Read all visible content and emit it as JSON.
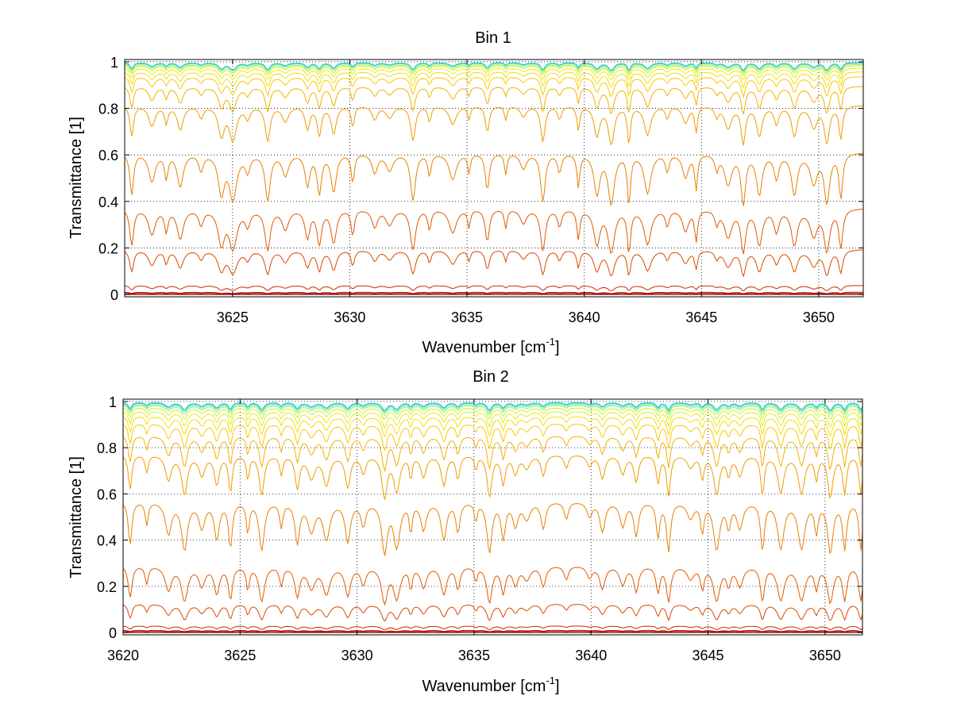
{
  "chart_data": [
    {
      "type": "line",
      "title": "Bin 1",
      "xlabel": "Wavenumber [cm",
      "xlabel_sup": "-1",
      "xlabel_suffix": "]",
      "ylabel": "Transmittance [1]",
      "xlim": [
        3620.4,
        3651.9
      ],
      "ylim": [
        -0.01,
        1.01
      ],
      "xticks": [
        3625,
        3630,
        3635,
        3640,
        3645,
        3650
      ],
      "xtick_labels": [
        "3625",
        "3630",
        "3635",
        "3640",
        "3645",
        "3650"
      ],
      "yticks": [
        0,
        0.2,
        0.4,
        0.6,
        0.8,
        1
      ],
      "ytick_labels": [
        "0",
        "0.2",
        "0.4",
        "0.6",
        "0.8",
        "1"
      ],
      "grid": true,
      "legend": "none",
      "series_baselines": [
        0.0,
        0.005,
        0.01,
        0.04,
        0.2,
        0.38,
        0.62,
        0.82,
        0.9,
        0.94,
        0.96,
        0.975,
        0.985,
        0.99,
        0.995,
        0.998,
        0.999
      ],
      "series_colors": [
        "#7f0000",
        "#a00000",
        "#c01000",
        "#c82a00",
        "#d84a00",
        "#e05a00",
        "#e98000",
        "#f09c00",
        "#f4b000",
        "#f8c800",
        "#f5dd00",
        "#e8ea10",
        "#c8f030",
        "#a0f060",
        "#70e8a0",
        "#40d8c8",
        "#20c8e0"
      ]
    },
    {
      "type": "line",
      "title": "Bin 2",
      "xlabel": "Wavenumber [cm",
      "xlabel_sup": "-1",
      "xlabel_suffix": "]",
      "ylabel": "Transmittance [1]",
      "xlim": [
        3620.0,
        3651.6
      ],
      "ylim": [
        -0.01,
        1.01
      ],
      "xticks": [
        3620,
        3625,
        3630,
        3635,
        3640,
        3645,
        3650
      ],
      "xtick_labels": [
        "3620",
        "3625",
        "3630",
        "3635",
        "3640",
        "3645",
        "3650"
      ],
      "yticks": [
        0,
        0.2,
        0.4,
        0.6,
        0.8,
        1
      ],
      "ytick_labels": [
        "0",
        "0.2",
        "0.4",
        "0.6",
        "0.8",
        "1"
      ],
      "grid": true,
      "legend": "none",
      "series_baselines": [
        0.0,
        0.005,
        0.01,
        0.03,
        0.13,
        0.3,
        0.58,
        0.78,
        0.86,
        0.91,
        0.94,
        0.96,
        0.975,
        0.985,
        0.99,
        0.995,
        0.998
      ],
      "series_colors": [
        "#7f0000",
        "#a00000",
        "#c01000",
        "#c82a00",
        "#d84a00",
        "#e05a00",
        "#e98000",
        "#f09c00",
        "#f4b000",
        "#f8c800",
        "#f5dd00",
        "#e8ea10",
        "#c8f030",
        "#a0f060",
        "#70e8a0",
        "#40d8c8",
        "#20c8e0"
      ]
    }
  ]
}
